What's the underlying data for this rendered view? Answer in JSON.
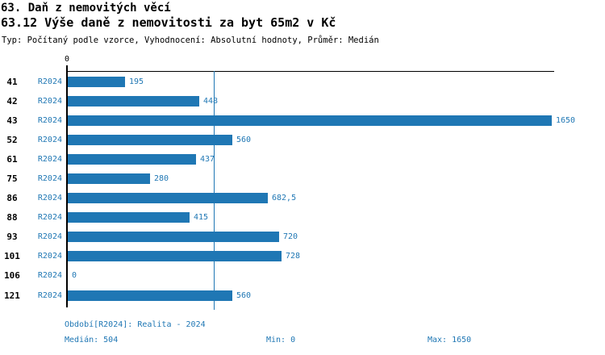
{
  "header": {
    "title": "63. Daň z nemovitých věcí",
    "subtitle": "63.12 Výše daně z nemovitosti za byt 65m2 v Kč",
    "meta": "Typ: Počítaný podle vzorce, Vyhodnocení: Absolutní hodnoty, Průměr: Medián"
  },
  "colors": {
    "bar": "#1f77b4",
    "blue_text": "#1f77b4",
    "axis": "#000000",
    "background": "#ffffff"
  },
  "chart_data": {
    "type": "bar",
    "orientation": "horizontal",
    "title": "63.12 Výše daně z nemovitosti za byt 65m2 v Kč",
    "categories": [
      "41",
      "42",
      "43",
      "52",
      "61",
      "75",
      "86",
      "88",
      "93",
      "101",
      "106",
      "121"
    ],
    "series_label": "R2024",
    "values": [
      195,
      448,
      1650,
      560,
      437,
      280,
      682.5,
      415,
      720,
      728,
      0,
      560
    ],
    "value_labels": [
      "195",
      "448",
      "1650",
      "560",
      "437",
      "280",
      "682,5",
      "415",
      "720",
      "728",
      "0",
      "560"
    ],
    "xlim": [
      0,
      1650
    ],
    "x_tick": "0",
    "median_line": 504,
    "grid": false,
    "legend": "none",
    "stats": {
      "median": 504,
      "min": 0,
      "max": 1650
    }
  },
  "footer": {
    "period": {
      "label": "Období[R2024]:",
      "value": "Realita - 2024"
    },
    "stats": [
      {
        "label": "Medián:",
        "value": "504"
      },
      {
        "label": "Min:",
        "value": "0"
      },
      {
        "label": "Max:",
        "value": "1650"
      }
    ]
  }
}
